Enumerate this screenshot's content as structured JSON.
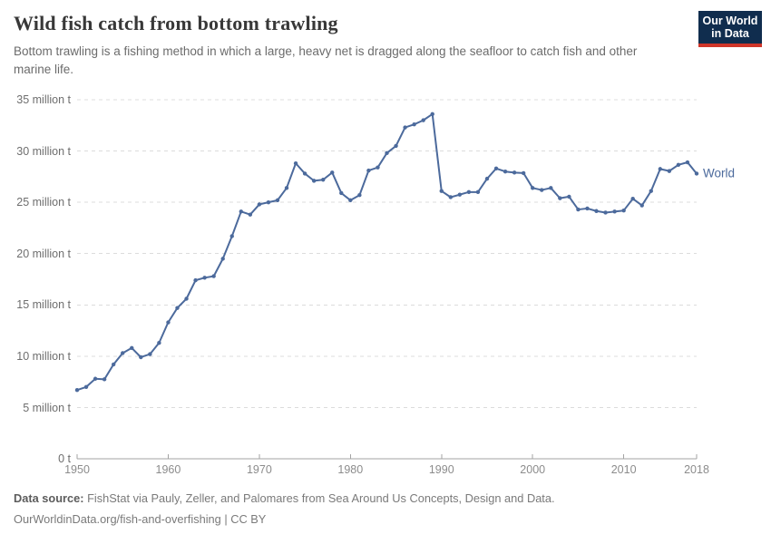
{
  "header": {
    "title": "Wild fish catch from bottom trawling",
    "subtitle": "Bottom trawling is a fishing method in which a large, heavy net is dragged along the seafloor to catch fish and other marine life.",
    "logo": {
      "line1": "Our World",
      "line2": "in Data"
    }
  },
  "colors": {
    "series_line": "#4C6A9C",
    "logo_background": "#102D4E",
    "logo_red": "#CF3529",
    "gridline": "#DCDCDC",
    "axis": "#A3A3A3",
    "y_label_text": "#6E6E6E",
    "x_label_text": "#8C8C8C"
  },
  "chart_data": {
    "type": "line",
    "title": "Wild fish catch from bottom trawling",
    "xlabel": "",
    "ylabel": "",
    "unit": "million tonnes",
    "xlim": [
      1950,
      2018
    ],
    "ylim": [
      0,
      35
    ],
    "grid": "horizontal-dashed",
    "legend_position": "end-of-line",
    "x": [
      1950,
      1951,
      1952,
      1953,
      1954,
      1955,
      1956,
      1957,
      1958,
      1959,
      1960,
      1961,
      1962,
      1963,
      1964,
      1965,
      1966,
      1967,
      1968,
      1969,
      1970,
      1971,
      1972,
      1973,
      1974,
      1975,
      1976,
      1977,
      1978,
      1979,
      1980,
      1981,
      1982,
      1983,
      1984,
      1985,
      1986,
      1987,
      1988,
      1989,
      1990,
      1991,
      1992,
      1993,
      1994,
      1995,
      1996,
      1997,
      1998,
      1999,
      2000,
      2001,
      2002,
      2003,
      2004,
      2005,
      2006,
      2007,
      2008,
      2009,
      2010,
      2011,
      2012,
      2013,
      2014,
      2015,
      2016,
      2017,
      2018
    ],
    "series": [
      {
        "name": "World",
        "color": "#4C6A9C",
        "values": [
          6.7,
          7.0,
          7.8,
          7.75,
          9.2,
          10.3,
          10.8,
          9.9,
          10.2,
          11.3,
          13.3,
          14.7,
          15.6,
          17.4,
          17.65,
          17.8,
          19.5,
          21.7,
          24.1,
          23.8,
          24.8,
          25.0,
          25.2,
          26.4,
          28.8,
          27.8,
          27.1,
          27.2,
          27.9,
          25.9,
          25.2,
          25.7,
          28.1,
          28.4,
          29.8,
          30.5,
          32.3,
          32.6,
          33.0,
          33.6,
          26.1,
          25.5,
          25.75,
          26.0,
          26.0,
          27.3,
          28.3,
          28.0,
          27.9,
          27.85,
          26.4,
          26.2,
          26.4,
          25.4,
          25.55,
          24.3,
          24.4,
          24.15,
          24.0,
          24.1,
          24.2,
          25.35,
          24.7,
          26.1,
          28.25,
          28.05,
          28.65,
          28.9,
          27.8
        ]
      }
    ],
    "y_ticks": [
      {
        "value": 0,
        "label": "0 t"
      },
      {
        "value": 5,
        "label": "5 million t"
      },
      {
        "value": 10,
        "label": "10 million t"
      },
      {
        "value": 15,
        "label": "15 million t"
      },
      {
        "value": 20,
        "label": "20 million t"
      },
      {
        "value": 25,
        "label": "25 million t"
      },
      {
        "value": 30,
        "label": "30 million t"
      },
      {
        "value": 35,
        "label": "35 million t"
      }
    ],
    "x_ticks": [
      {
        "value": 1950,
        "label": "1950"
      },
      {
        "value": 1960,
        "label": "1960"
      },
      {
        "value": 1970,
        "label": "1970"
      },
      {
        "value": 1980,
        "label": "1980"
      },
      {
        "value": 1990,
        "label": "1990"
      },
      {
        "value": 2000,
        "label": "2000"
      },
      {
        "value": 2010,
        "label": "2010"
      },
      {
        "value": 2018,
        "label": "2018"
      }
    ]
  },
  "footer": {
    "source_label": "Data source:",
    "source_text": " FishStat via Pauly, Zeller, and Palomares from Sea Around Us Concepts, Design and Data.",
    "link_text": "OurWorldinData.org/fish-and-overfishing | CC BY"
  }
}
